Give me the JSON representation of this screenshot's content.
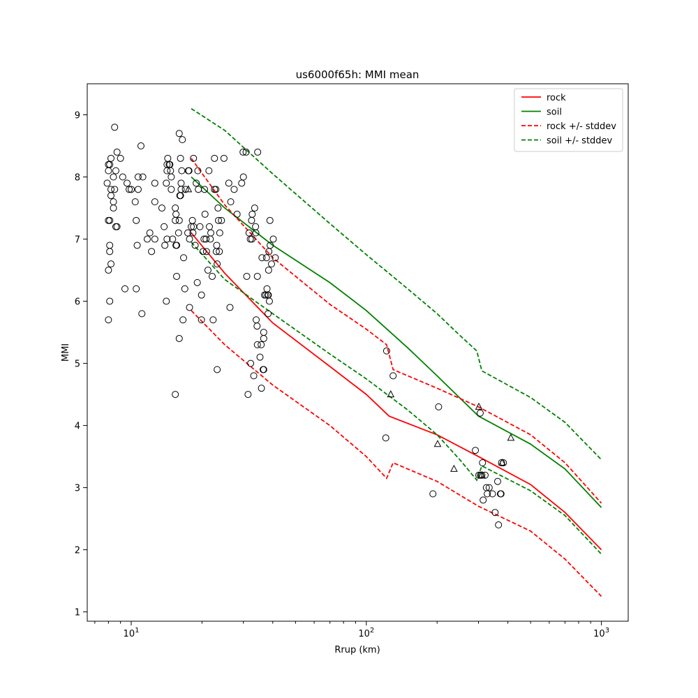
{
  "chart_data": {
    "type": "scatter",
    "title": "us6000f65h: MMI mean",
    "xlabel": "Rrup (km)",
    "ylabel": "MMI",
    "xscale": "log",
    "xlim": [
      6.5,
      1300
    ],
    "ylim": [
      0.85,
      9.5
    ],
    "xticks": [
      10,
      100,
      1000
    ],
    "xtick_labels": [
      "10^1",
      "10^2",
      "10^3"
    ],
    "yticks": [
      1,
      2,
      3,
      4,
      5,
      6,
      7,
      8,
      9
    ],
    "legend_position": "top-right",
    "legend": [
      {
        "label": "rock",
        "color": "#ff0000",
        "style": "solid"
      },
      {
        "label": "soil",
        "color": "#008000",
        "style": "solid"
      },
      {
        "label": "rock +/- stddev",
        "color": "#ff0000",
        "style": "dashed"
      },
      {
        "label": "soil +/- stddev",
        "color": "#008000",
        "style": "dashed"
      }
    ],
    "lines": [
      {
        "name": "rock",
        "color": "#ff0000",
        "style": "solid",
        "x": [
          18,
          25,
          40,
          70,
          100,
          125,
          200,
          300,
          500,
          700,
          1000
        ],
        "y": [
          7.1,
          6.45,
          5.65,
          4.95,
          4.5,
          4.15,
          3.85,
          3.5,
          3.05,
          2.6,
          2.0
        ]
      },
      {
        "name": "soil",
        "color": "#008000",
        "style": "solid",
        "x": [
          18,
          25,
          40,
          70,
          100,
          150,
          200,
          300,
          500,
          700,
          1000
        ],
        "y": [
          8.0,
          7.5,
          6.9,
          6.3,
          5.85,
          5.25,
          4.8,
          4.15,
          3.7,
          3.3,
          2.68
        ]
      },
      {
        "name": "rock + stddev",
        "color": "#ff0000",
        "style": "dashed",
        "x": [
          18,
          25,
          40,
          70,
          100,
          122,
          130,
          200,
          300,
          500,
          700,
          1000
        ],
        "y": [
          8.3,
          7.55,
          6.7,
          5.95,
          5.55,
          5.3,
          4.9,
          4.6,
          4.3,
          3.85,
          3.4,
          2.75
        ]
      },
      {
        "name": "rock - stddev",
        "color": "#ff0000",
        "style": "dashed",
        "x": [
          18,
          25,
          40,
          70,
          100,
          122,
          130,
          200,
          300,
          500,
          700,
          1000
        ],
        "y": [
          5.85,
          5.3,
          4.65,
          4.0,
          3.5,
          3.15,
          3.4,
          3.1,
          2.7,
          2.3,
          1.85,
          1.25
        ]
      },
      {
        "name": "soil + stddev",
        "color": "#008000",
        "style": "dashed",
        "x": [
          18,
          25,
          40,
          70,
          100,
          150,
          200,
          250,
          295,
          310,
          500,
          700,
          1000
        ],
        "y": [
          9.1,
          8.75,
          8.05,
          7.25,
          6.75,
          6.2,
          5.8,
          5.45,
          5.2,
          4.88,
          4.45,
          4.05,
          3.45
        ]
      },
      {
        "name": "soil - stddev",
        "color": "#008000",
        "style": "dashed",
        "x": [
          18,
          25,
          40,
          70,
          100,
          150,
          200,
          250,
          295,
          310,
          500,
          700,
          1000
        ],
        "y": [
          6.95,
          6.35,
          5.8,
          5.15,
          4.75,
          4.25,
          3.85,
          3.45,
          3.12,
          3.35,
          2.95,
          2.55,
          1.93
        ]
      }
    ],
    "series": [
      {
        "name": "observed-circles",
        "marker": "circle",
        "points": [
          [
            8.5,
            8.8
          ],
          [
            8.0,
            8.2
          ],
          [
            8.1,
            8.2
          ],
          [
            8.2,
            8.3
          ],
          [
            8.7,
            8.4
          ],
          [
            9.0,
            8.3
          ],
          [
            8.0,
            8.1
          ],
          [
            8.6,
            8.1
          ],
          [
            9.2,
            8.0
          ],
          [
            8.4,
            8.0
          ],
          [
            7.9,
            7.9
          ],
          [
            9.6,
            7.9
          ],
          [
            9.8,
            7.8
          ],
          [
            10.0,
            7.8
          ],
          [
            8.2,
            7.8
          ],
          [
            8.5,
            7.8
          ],
          [
            8.2,
            7.7
          ],
          [
            8.4,
            7.6
          ],
          [
            8.4,
            7.5
          ],
          [
            8.0,
            7.3
          ],
          [
            8.1,
            7.3
          ],
          [
            8.6,
            7.2
          ],
          [
            8.7,
            7.2
          ],
          [
            8.1,
            6.9
          ],
          [
            8.1,
            6.8
          ],
          [
            8.2,
            6.6
          ],
          [
            8.0,
            6.5
          ],
          [
            8.1,
            6.0
          ],
          [
            8.0,
            5.7
          ],
          [
            9.4,
            6.2
          ],
          [
            10.5,
            6.2
          ],
          [
            10.6,
            6.9
          ],
          [
            10.5,
            7.3
          ],
          [
            10.4,
            7.6
          ],
          [
            10.7,
            7.8
          ],
          [
            10.7,
            8.0
          ],
          [
            11.2,
            8.0
          ],
          [
            11.0,
            8.5
          ],
          [
            11.7,
            7.0
          ],
          [
            12.0,
            7.1
          ],
          [
            12.2,
            6.8
          ],
          [
            12.6,
            7.0
          ],
          [
            12.6,
            7.6
          ],
          [
            12.6,
            7.9
          ],
          [
            11.1,
            5.8
          ],
          [
            13.5,
            7.5
          ],
          [
            13.8,
            7.2
          ],
          [
            13.9,
            6.9
          ],
          [
            14.1,
            6.0
          ],
          [
            14.2,
            7.0
          ],
          [
            14.1,
            7.9
          ],
          [
            14.2,
            8.1
          ],
          [
            14.2,
            8.2
          ],
          [
            14.3,
            8.3
          ],
          [
            14.5,
            8.2
          ],
          [
            14.6,
            8.2
          ],
          [
            14.8,
            8.0
          ],
          [
            14.8,
            7.8
          ],
          [
            14.7,
            8.1
          ],
          [
            15.0,
            7.0
          ],
          [
            15.4,
            7.3
          ],
          [
            15.4,
            7.5
          ],
          [
            15.5,
            7.4
          ],
          [
            15.5,
            6.9
          ],
          [
            15.6,
            6.9
          ],
          [
            15.6,
            6.4
          ],
          [
            15.4,
            4.5
          ],
          [
            15.9,
            7.1
          ],
          [
            16.0,
            5.4
          ],
          [
            16.0,
            7.3
          ],
          [
            16.0,
            8.7
          ],
          [
            16.1,
            7.7
          ],
          [
            16.2,
            7.7
          ],
          [
            16.2,
            8.3
          ],
          [
            16.3,
            7.9
          ],
          [
            16.3,
            7.8
          ],
          [
            16.4,
            8.1
          ],
          [
            16.5,
            8.6
          ],
          [
            16.7,
            6.7
          ],
          [
            16.9,
            6.2
          ],
          [
            16.6,
            5.7
          ],
          [
            17.0,
            7.8
          ],
          [
            17.4,
            7.1
          ],
          [
            17.5,
            8.1
          ],
          [
            17.6,
            8.1
          ],
          [
            17.7,
            7.0
          ],
          [
            17.7,
            5.9
          ],
          [
            18.0,
            7.2
          ],
          [
            18.2,
            7.3
          ],
          [
            18.3,
            7.1
          ],
          [
            18.4,
            7.2
          ],
          [
            18.4,
            8.3
          ],
          [
            18.7,
            6.9
          ],
          [
            18.9,
            7.9
          ],
          [
            19.1,
            6.3
          ],
          [
            19.2,
            8.1
          ],
          [
            19.3,
            7.8
          ],
          [
            19.6,
            7.2
          ],
          [
            19.9,
            6.1
          ],
          [
            19.9,
            5.7
          ],
          [
            20.2,
            6.8
          ],
          [
            20.4,
            7.0
          ],
          [
            20.5,
            7.8
          ],
          [
            20.6,
            7.4
          ],
          [
            20.8,
            7.0
          ],
          [
            20.9,
            6.8
          ],
          [
            21.2,
            6.5
          ],
          [
            21.4,
            8.1
          ],
          [
            21.5,
            7.2
          ],
          [
            21.7,
            7.0
          ],
          [
            21.8,
            7.1
          ],
          [
            22.1,
            6.4
          ],
          [
            22.3,
            5.7
          ],
          [
            22.6,
            7.8
          ],
          [
            22.6,
            8.3
          ],
          [
            22.9,
            7.8
          ],
          [
            23.0,
            6.8
          ],
          [
            23.1,
            6.9
          ],
          [
            23.2,
            6.6
          ],
          [
            23.2,
            4.9
          ],
          [
            23.4,
            7.5
          ],
          [
            23.5,
            7.3
          ],
          [
            23.7,
            6.8
          ],
          [
            23.8,
            7.1
          ],
          [
            24.2,
            7.3
          ],
          [
            24.8,
            8.3
          ],
          [
            26.0,
            7.9
          ],
          [
            26.3,
            5.9
          ],
          [
            26.5,
            7.6
          ],
          [
            27.4,
            7.8
          ],
          [
            28.2,
            7.4
          ],
          [
            29.5,
            7.9
          ],
          [
            29.9,
            8.4
          ],
          [
            30.0,
            8.0
          ],
          [
            30.8,
            8.4
          ],
          [
            31.0,
            6.4
          ],
          [
            31.4,
            4.5
          ],
          [
            31.7,
            7.1
          ],
          [
            32.1,
            7.0
          ],
          [
            32.2,
            5.0
          ],
          [
            32.5,
            7.3
          ],
          [
            32.6,
            7.0
          ],
          [
            32.7,
            7.4
          ],
          [
            33.2,
            4.8
          ],
          [
            33.5,
            7.5
          ],
          [
            33.8,
            7.2
          ],
          [
            33.9,
            7.1
          ],
          [
            34.0,
            5.7
          ],
          [
            34.3,
            5.6
          ],
          [
            34.4,
            6.4
          ],
          [
            34.4,
            5.3
          ],
          [
            34.5,
            8.4
          ],
          [
            35.3,
            5.1
          ],
          [
            35.7,
            5.3
          ],
          [
            35.8,
            4.6
          ],
          [
            36.0,
            6.7
          ],
          [
            36.4,
            4.9
          ],
          [
            36.6,
            5.5
          ],
          [
            36.6,
            5.4
          ],
          [
            36.6,
            4.9
          ],
          [
            36.9,
            6.1
          ],
          [
            37.4,
            6.1
          ],
          [
            37.6,
            6.7
          ],
          [
            37.8,
            6.2
          ],
          [
            38.1,
            6.1
          ],
          [
            38.2,
            5.8
          ],
          [
            38.3,
            6.1
          ],
          [
            38.4,
            6.5
          ],
          [
            38.5,
            6.8
          ],
          [
            38.7,
            6.0
          ],
          [
            38.9,
            7.3
          ],
          [
            39.0,
            6.9
          ],
          [
            39.5,
            6.6
          ],
          [
            40.2,
            7.0
          ],
          [
            41.0,
            6.7
          ],
          [
            122,
            5.2
          ],
          [
            121,
            3.8
          ],
          [
            130,
            4.8
          ],
          [
            192,
            2.9
          ],
          [
            203,
            4.3
          ],
          [
            291,
            3.6
          ],
          [
            301,
            3.2
          ],
          [
            305,
            4.2
          ],
          [
            306,
            3.2
          ],
          [
            310,
            3.2
          ],
          [
            312,
            3.4
          ],
          [
            314,
            2.8
          ],
          [
            320,
            3.2
          ],
          [
            324,
            3.0
          ],
          [
            327,
            2.9
          ],
          [
            333,
            3.0
          ],
          [
            344,
            2.9
          ],
          [
            353,
            2.6
          ],
          [
            362,
            3.1
          ],
          [
            365,
            2.4
          ],
          [
            372,
            2.9
          ],
          [
            374,
            2.9
          ],
          [
            376,
            3.4
          ],
          [
            383,
            3.4
          ]
        ]
      },
      {
        "name": "observed-triangles",
        "marker": "triangle",
        "points": [
          [
            17.5,
            7.8
          ],
          [
            127,
            4.5
          ],
          [
            201,
            3.7
          ],
          [
            236,
            3.3
          ],
          [
            301,
            4.3
          ],
          [
            310,
            3.2
          ],
          [
            378,
            3.4
          ],
          [
            412,
            3.8
          ]
        ]
      }
    ]
  }
}
